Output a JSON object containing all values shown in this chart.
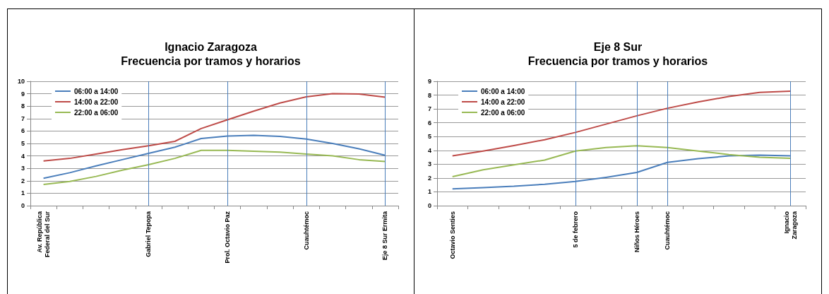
{
  "chart_data": [
    {
      "type": "line",
      "title": "Ignacio Zaragoza\nFrecuencia por tramos y horarios",
      "categories": [
        "Av. República\nFederal del Sur",
        null,
        null,
        null,
        "Gabriel Tepopa",
        null,
        null,
        "Prol. Octavio Paz",
        null,
        null,
        "Cuauhtémoc",
        null,
        null,
        "Eje 8 Sur Ermita"
      ],
      "series": [
        {
          "name": "06:00 a 14:00",
          "color": "#4a7ebb",
          "values": [
            2.2,
            2.65,
            3.2,
            3.7,
            4.2,
            4.7,
            5.4,
            5.6,
            5.65,
            5.57,
            5.35,
            5.0,
            4.57,
            4.05
          ]
        },
        {
          "name": "14:00 a 22:00",
          "color": "#be4b48",
          "values": [
            3.6,
            3.8,
            4.15,
            4.5,
            4.82,
            5.17,
            6.2,
            6.9,
            7.6,
            8.25,
            8.75,
            9.0,
            8.98,
            8.72
          ]
        },
        {
          "name": "22:00 a 06:00",
          "color": "#98b954",
          "values": [
            1.7,
            1.95,
            2.35,
            2.85,
            3.3,
            3.8,
            4.45,
            4.45,
            4.37,
            4.3,
            4.15,
            4.0,
            3.7,
            3.55
          ]
        }
      ],
      "ylim": [
        0,
        10
      ],
      "yticks": [
        0,
        1,
        2,
        3,
        4,
        5,
        6,
        7,
        8,
        9,
        10
      ],
      "grid": "y",
      "legend": "top left",
      "marker": "none",
      "line_style": "solid",
      "ref_lines": [
        {
          "axis": "x",
          "value": "Gabriel Tepopa",
          "color": "#4a7ebb"
        },
        {
          "axis": "x",
          "value": "Prol. Octavio Paz",
          "color": "#4a7ebb"
        },
        {
          "axis": "x",
          "value": "Cuauhtémoc",
          "color": "#4a7ebb"
        },
        {
          "axis": "x",
          "value": "Eje 8 Sur Ermita",
          "color": "#4a7ebb"
        }
      ]
    },
    {
      "type": "line",
      "title": "Eje 8 Sur\nFrecuencia por tramos y horarios",
      "categories": [
        "Octavio Senties",
        null,
        null,
        null,
        "5 de febrero",
        null,
        "Niños Héroes",
        "Cuauhtémoc",
        null,
        null,
        null,
        "Ignacio\nZaragoza"
      ],
      "series": [
        {
          "name": "06:00 a 14:00",
          "color": "#4a7ebb",
          "values": [
            1.22,
            1.3,
            1.4,
            1.55,
            1.75,
            2.05,
            2.4,
            3.13,
            3.4,
            3.6,
            3.65,
            3.6
          ]
        },
        {
          "name": "14:00 a 22:00",
          "color": "#be4b48",
          "values": [
            3.6,
            3.95,
            4.35,
            4.77,
            5.3,
            5.9,
            6.5,
            7.05,
            7.5,
            7.9,
            8.2,
            8.28
          ]
        },
        {
          "name": "22:00 a 06:00",
          "color": "#98b954",
          "values": [
            2.1,
            2.6,
            2.95,
            3.3,
            3.95,
            4.2,
            4.33,
            4.2,
            3.95,
            3.7,
            3.5,
            3.42
          ]
        }
      ],
      "ylim": [
        0,
        9
      ],
      "yticks": [
        0,
        1,
        2,
        3,
        4,
        5,
        6,
        7,
        8,
        9
      ],
      "grid": "y",
      "legend": "top left",
      "marker": "none",
      "line_style": "solid",
      "ref_lines": [
        {
          "axis": "x",
          "value": "5 de febrero",
          "color": "#4a7ebb"
        },
        {
          "axis": "x",
          "value": "Niños Héroes",
          "color": "#4a7ebb"
        },
        {
          "axis": "x",
          "value": "Cuauhtémoc",
          "color": "#4a7ebb"
        },
        {
          "axis": "x",
          "value": "Ignacio\nZaragoza",
          "color": "#4a7ebb"
        }
      ]
    }
  ]
}
